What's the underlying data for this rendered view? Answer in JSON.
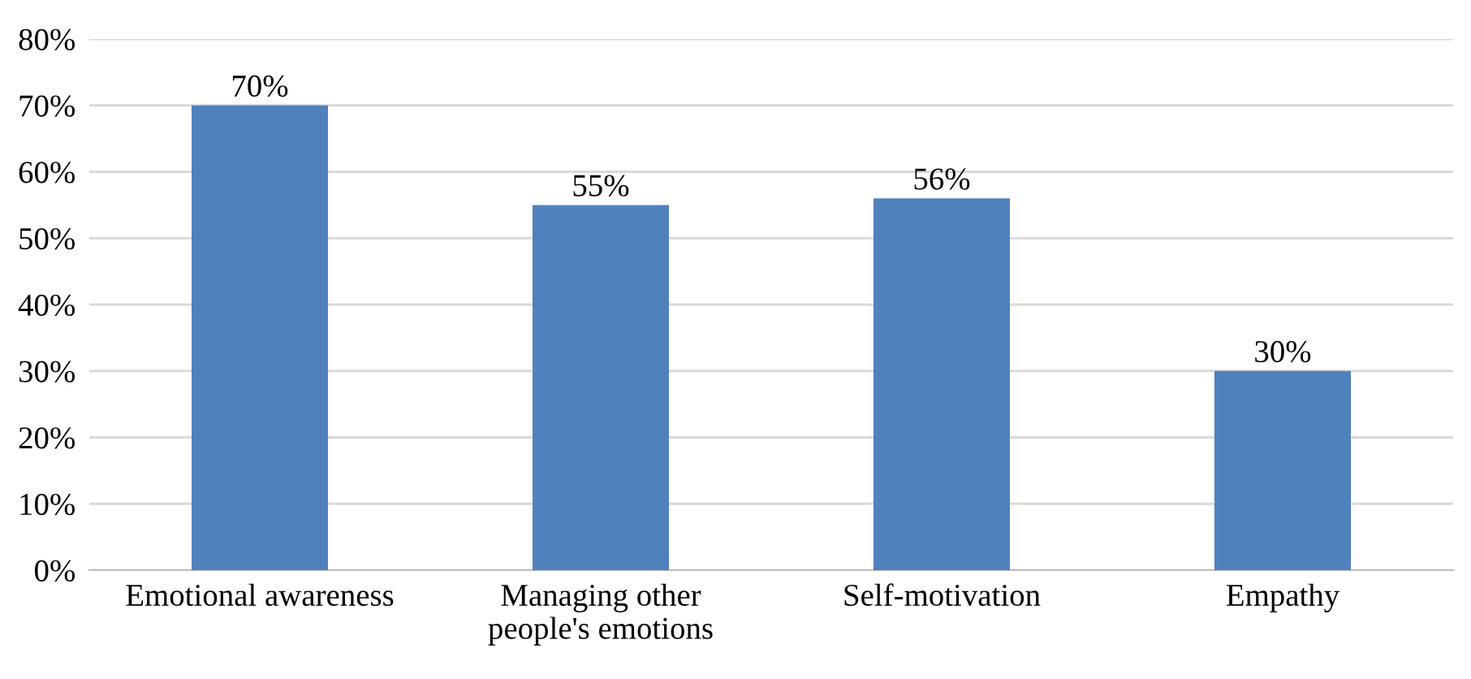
{
  "chart_data": {
    "type": "bar",
    "categories": [
      "Emotional awareness",
      "Managing other\npeople's emotions",
      "Self-motivation",
      "Empathy"
    ],
    "values": [
      70,
      55,
      56,
      30
    ],
    "value_labels": [
      "70%",
      "55%",
      "56%",
      "30%"
    ],
    "color": "#4f81bd",
    "ylim": [
      0,
      80
    ],
    "yticks": [
      {
        "value": 0,
        "label": "0%"
      },
      {
        "value": 10,
        "label": "10%"
      },
      {
        "value": 20,
        "label": "20%"
      },
      {
        "value": 30,
        "label": "30%"
      },
      {
        "value": 40,
        "label": "40%"
      },
      {
        "value": 50,
        "label": "50%"
      },
      {
        "value": 60,
        "label": "60%"
      },
      {
        "value": 70,
        "label": "70%"
      },
      {
        "value": 80,
        "label": "80%"
      }
    ],
    "grid": "y"
  }
}
